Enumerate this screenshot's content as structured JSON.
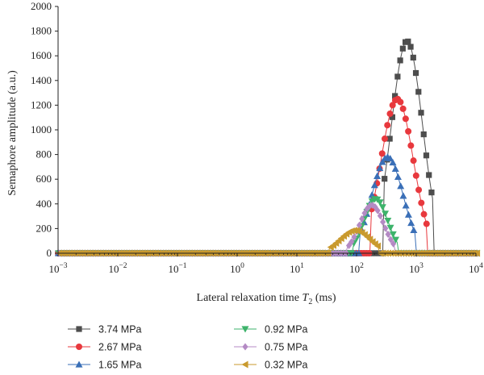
{
  "chart_data": {
    "type": "line",
    "title": "",
    "ylabel": "Semaphore amplitude (a.u.)",
    "xlabel": {
      "prefix": "Lateral relaxation time ",
      "symbol": "T",
      "subscript": "2",
      "suffix": " (ms)"
    },
    "x_scale": "log",
    "xlim": [
      0.001,
      10000
    ],
    "ylim": [
      0,
      2000
    ],
    "x_ticks": [
      {
        "value": 0.001,
        "base": "10",
        "exp": "−3"
      },
      {
        "value": 0.01,
        "base": "10",
        "exp": "−2"
      },
      {
        "value": 0.1,
        "base": "10",
        "exp": "−1"
      },
      {
        "value": 1,
        "base": "10",
        "exp": "0"
      },
      {
        "value": 10,
        "base": "10",
        "exp": "1"
      },
      {
        "value": 100,
        "base": "10",
        "exp": "2"
      },
      {
        "value": 1000,
        "base": "10",
        "exp": "3"
      },
      {
        "value": 10000,
        "base": "10",
        "exp": "4"
      }
    ],
    "y_ticks": [
      0,
      200,
      400,
      600,
      800,
      1000,
      1200,
      1400,
      1600,
      1800,
      2000
    ],
    "grid": false,
    "legend_position": "bottom",
    "series": [
      {
        "name": "3.74 MPa",
        "color": "#4d4d4d",
        "marker": "square",
        "peak_x": 700,
        "peak_y": 1720,
        "width_decades": 0.26,
        "x_min": 280,
        "x_max": 1900
      },
      {
        "name": "2.67 MPa",
        "color": "#e8383d",
        "marker": "circle",
        "peak_x": 480,
        "peak_y": 1250,
        "width_decades": 0.27,
        "x_min": 170,
        "x_max": 1500
      },
      {
        "name": "1.65 MPa",
        "color": "#3a6fb7",
        "marker": "triangle-up",
        "peak_x": 330,
        "peak_y": 780,
        "width_decades": 0.26,
        "x_min": 110,
        "x_max": 1000
      },
      {
        "name": "0.92 MPa",
        "color": "#3db36b",
        "marker": "triangle-down",
        "peak_x": 210,
        "peak_y": 440,
        "width_decades": 0.2,
        "x_min": 85,
        "x_max": 500
      },
      {
        "name": "0.75 MPa",
        "color": "#b48ac4",
        "marker": "diamond",
        "peak_x": 180,
        "peak_y": 390,
        "width_decades": 0.2,
        "x_min": 70,
        "x_max": 450
      },
      {
        "name": "0.32 MPa",
        "color": "#c99a2e",
        "marker": "triangle-left",
        "peak_x": 95,
        "peak_y": 185,
        "width_decades": 0.25,
        "x_min": 35,
        "x_max": 230
      }
    ]
  }
}
